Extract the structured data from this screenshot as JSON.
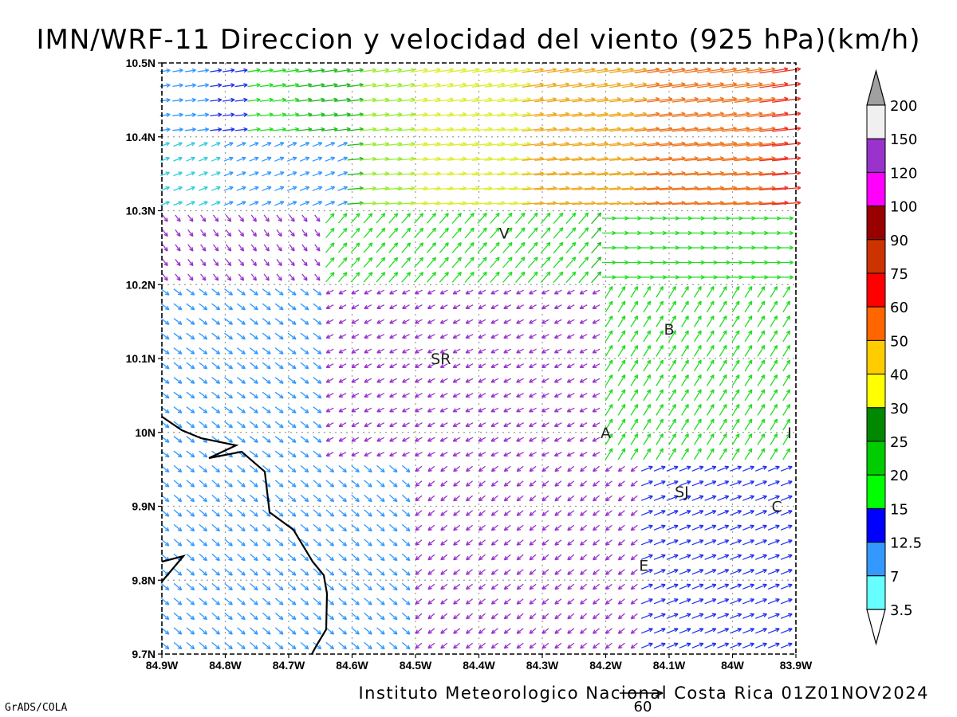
{
  "title": "IMN/WRF-11 Direccion y velocidad del viento (925 hPa)(km/h)",
  "footer": "Instituto Meteorologico Nacional Costa Rica 01Z01NOV2024",
  "credit": "GrADS/COLA",
  "reference_vector": {
    "value": "60",
    "speed": 60
  },
  "axes": {
    "lon_labels": [
      "84.9W",
      "84.8W",
      "84.7W",
      "84.6W",
      "84.5W",
      "84.4W",
      "84.3W",
      "84.2W",
      "84.1W",
      "84W",
      "83.9W"
    ],
    "lat_labels": [
      "10.5N",
      "10.4N",
      "10.3N",
      "10.2N",
      "10.1N",
      "10N",
      "9.9N",
      "9.8N",
      "9.7N"
    ],
    "lon_range": [
      -84.9,
      -83.9
    ],
    "lat_range": [
      9.7,
      10.5
    ],
    "grid": "dotted"
  },
  "colorbar": {
    "labels": [
      "200",
      "150",
      "120",
      "100",
      "90",
      "75",
      "60",
      "50",
      "40",
      "30",
      "25",
      "20",
      "15",
      "12.5",
      "7",
      "3.5"
    ],
    "colors": [
      "#a0a0a0",
      "#f0f0f0",
      "#9933cc",
      "#ff00ff",
      "#990000",
      "#cc3300",
      "#ff0000",
      "#ff6600",
      "#ffcc00",
      "#ffff00",
      "#008800",
      "#00cc00",
      "#00ff00",
      "#0000ff",
      "#3399ff",
      "#66ffff"
    ],
    "arrow_top_color": "#a0a0a0",
    "arrow_bottom_color": "#ffffff"
  },
  "places": [
    {
      "label": "V",
      "lon": -84.36,
      "lat": 10.27
    },
    {
      "label": "B",
      "lon": -84.1,
      "lat": 10.14
    },
    {
      "label": "SR",
      "lon": -84.46,
      "lat": 10.1
    },
    {
      "label": "A",
      "lon": -84.2,
      "lat": 10.0
    },
    {
      "label": "I",
      "lon": -83.91,
      "lat": 10.0
    },
    {
      "label": "SJ",
      "lon": -84.08,
      "lat": 9.92
    },
    {
      "label": "C",
      "lon": -83.93,
      "lat": 9.9
    },
    {
      "label": "E",
      "lon": -84.14,
      "lat": 9.82
    }
  ]
}
